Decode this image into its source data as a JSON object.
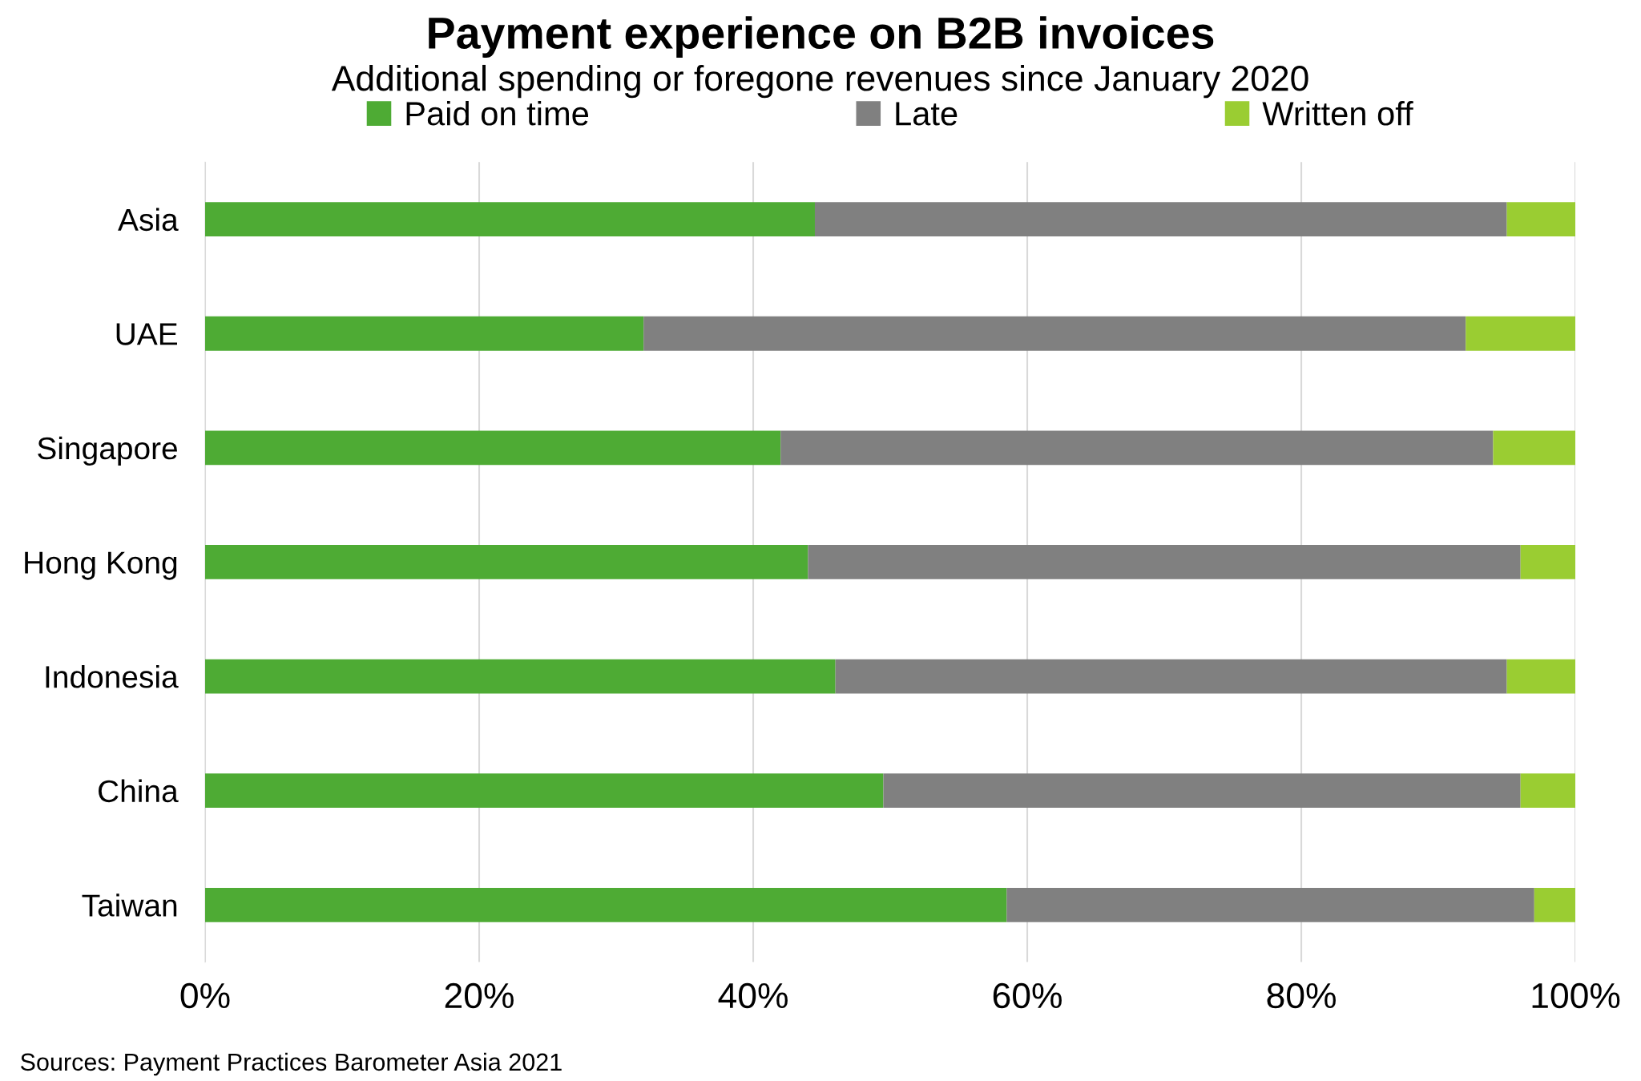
{
  "chart_data": {
    "type": "bar",
    "orientation": "horizontal",
    "stacked": true,
    "title": "Payment experience on B2B invoices",
    "subtitle": "Additional spending or foregone revenues since January 2020",
    "categories": [
      "Asia",
      "UAE",
      "Singapore",
      "Hong Kong",
      "Indonesia",
      "China",
      "Taiwan"
    ],
    "series": [
      {
        "name": "Paid on time",
        "color": "#4eab34",
        "values": [
          44.5,
          32,
          42,
          44,
          46,
          49.5,
          58.5
        ]
      },
      {
        "name": "Late",
        "color": "#808080",
        "values": [
          50.5,
          60,
          52,
          52,
          49,
          46.5,
          38.5
        ]
      },
      {
        "name": "Written off",
        "color": "#9acd32",
        "values": [
          5,
          8,
          6,
          4,
          5,
          4,
          3
        ]
      }
    ],
    "xlim": [
      0,
      100
    ],
    "xticks": [
      {
        "value": 0,
        "label": "0%"
      },
      {
        "value": 20,
        "label": "20%"
      },
      {
        "value": 40,
        "label": "40%"
      },
      {
        "value": 60,
        "label": "60%"
      },
      {
        "value": 80,
        "label": "80%"
      },
      {
        "value": 100,
        "label": "100%"
      }
    ],
    "grid": "x",
    "legend": "top",
    "annotations": [
      "Sources: Payment Practices Barometer Asia 2021"
    ]
  }
}
